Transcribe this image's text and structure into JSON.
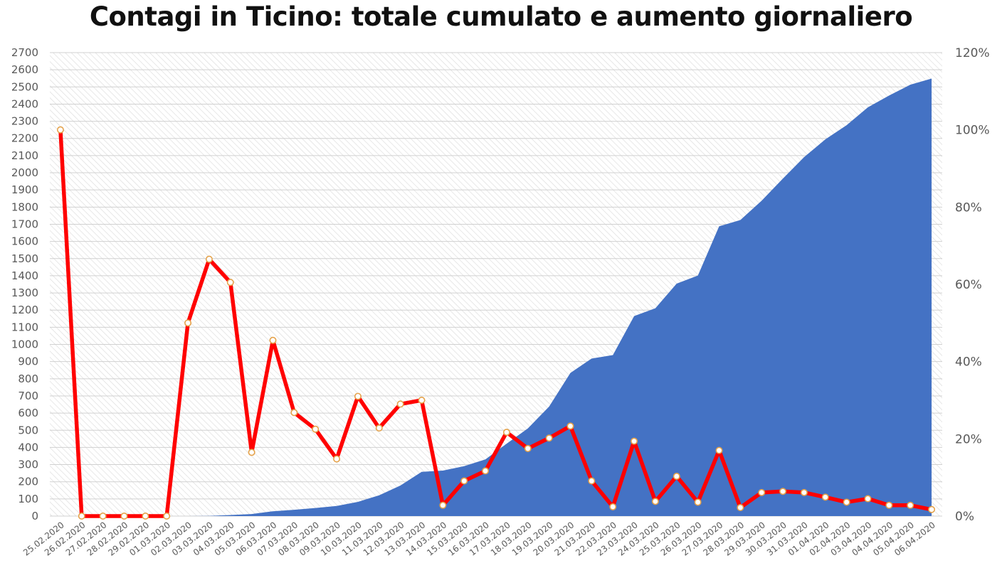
{
  "chart_data": {
    "type": "area+line",
    "title": "Contagi in Ticino: totale cumulato e aumento giornaliero",
    "categories": [
      "25.02.2020",
      "26.02.2020",
      "27.02.2020",
      "28.02.2020",
      "29.02.2020",
      "01.03.2020",
      "02.03.2020",
      "03.03.2020",
      "04.03.2020",
      "05.03.2020",
      "06.03.2020",
      "07.03.2020",
      "08.03.2020",
      "09.03.2020",
      "10.03.2020",
      "11.03.2020",
      "12.03.2020",
      "13.03.2020",
      "14.03.2020",
      "15.03.2020",
      "16.03.2020",
      "17.03.2020",
      "18.03.2020",
      "19.03.2020",
      "20.03.2020",
      "21.03.2020",
      "22.03.2020",
      "23.03.2020",
      "24.03.2020",
      "25.03.2020",
      "26.03.2020",
      "27.03.2020",
      "28.03.2020",
      "29.03.2020",
      "30.03.2020",
      "31.03.2020",
      "01.04.2020",
      "02.04.2020",
      "03.04.2020",
      "04.04.2020",
      "05.04.2020",
      "06.04.2020"
    ],
    "y_ticks": [
      "0",
      "100",
      "200",
      "300",
      "400",
      "500",
      "600",
      "700",
      "800",
      "900",
      "1000",
      "1100",
      "1200",
      "1300",
      "1400",
      "1500",
      "1600",
      "1700",
      "1800",
      "1900",
      "2000",
      "2100",
      "2200",
      "2300",
      "2400",
      "2500",
      "2600",
      "2700"
    ],
    "y2_ticks": [
      "0%",
      "20%",
      "40%",
      "60%",
      "80%",
      "100%",
      "120%"
    ],
    "ylim": [
      0,
      2700
    ],
    "y2lim": [
      0,
      120
    ],
    "series": [
      {
        "axis": "left",
        "type": "area",
        "color": "#4472C4",
        "values": [
          0,
          0,
          0,
          0,
          0,
          0,
          0,
          1,
          6,
          12,
          28,
          37,
          47,
          59,
          83,
          121,
          178,
          258,
          265,
          291,
          330,
          422,
          511,
          638,
          834,
          918,
          938,
          1165,
          1211,
          1354,
          1401,
          1688,
          1725,
          1837,
          1966,
          2091,
          2195,
          2277,
          2381,
          2450,
          2513,
          2549
        ]
      },
      {
        "axis": "right",
        "type": "line",
        "color": "#FF0000",
        "values": [
          100,
          0,
          0,
          0,
          0,
          0,
          50,
          66.5,
          60.5,
          16.5,
          45.5,
          26.8,
          22.5,
          14.8,
          31,
          22.8,
          29,
          30,
          2.8,
          9.1,
          11.7,
          21.7,
          17.5,
          20.2,
          23.3,
          9.1,
          2.4,
          19.4,
          3.8,
          10.3,
          3.6,
          17,
          2.2,
          6.1,
          6.4,
          6.1,
          4.9,
          3.6,
          4.5,
          2.8,
          2.8,
          1.7
        ]
      }
    ],
    "grid": true
  }
}
